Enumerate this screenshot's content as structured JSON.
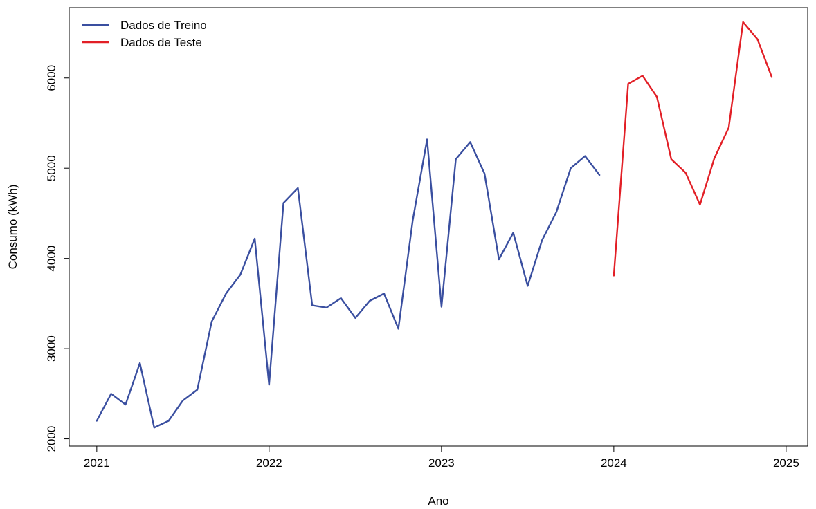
{
  "chart_data": {
    "type": "line",
    "title": "",
    "xlabel": "Ano",
    "ylabel": "Consumo (kWh)",
    "xlim": [
      2020.84,
      2025.125
    ],
    "ylim": [
      1920,
      6780
    ],
    "x_ticks": [
      2021,
      2022,
      2023,
      2024,
      2025
    ],
    "x_tick_labels": [
      "2021",
      "2022",
      "2023",
      "2024",
      "2025"
    ],
    "y_ticks": [
      2000,
      3000,
      4000,
      5000,
      6000
    ],
    "y_tick_labels": [
      "2000",
      "3000",
      "4000",
      "5000",
      "6000"
    ],
    "grid": false,
    "legend_position": "top-left",
    "series": [
      {
        "name": "Dados de Treino",
        "color": "#3A4FA0",
        "x": [
          2021.0,
          2021.0833,
          2021.1667,
          2021.25,
          2021.3333,
          2021.4167,
          2021.5,
          2021.5833,
          2021.6667,
          2021.75,
          2021.8333,
          2021.9167,
          2022.0,
          2022.0833,
          2022.1667,
          2022.25,
          2022.3333,
          2022.4167,
          2022.5,
          2022.5833,
          2022.6667,
          2022.75,
          2022.8333,
          2022.9167,
          2023.0,
          2023.0833,
          2023.1667,
          2023.25,
          2023.3333,
          2023.4167,
          2023.5,
          2023.5833,
          2023.6667,
          2023.75,
          2023.8333,
          2023.9167
        ],
        "values": [
          2200,
          2500,
          2380,
          2840,
          2125,
          2200,
          2425,
          2545,
          3300,
          3610,
          3820,
          4220,
          2600,
          4615,
          4780,
          3480,
          3455,
          3560,
          3340,
          3530,
          3610,
          3220,
          4420,
          5320,
          3465,
          5100,
          5290,
          4940,
          3990,
          4285,
          3695,
          4200,
          4515,
          5000,
          5135,
          4925
        ]
      },
      {
        "name": "Dados de Teste",
        "color": "#E21F26",
        "x": [
          2024.0,
          2024.0833,
          2024.1667,
          2024.25,
          2024.3333,
          2024.4167,
          2024.5,
          2024.5833,
          2024.6667,
          2024.75,
          2024.8333,
          2024.9167
        ],
        "values": [
          3810,
          5935,
          6025,
          5790,
          5100,
          4950,
          4595,
          5110,
          5450,
          6620,
          6430,
          6010
        ]
      }
    ]
  }
}
